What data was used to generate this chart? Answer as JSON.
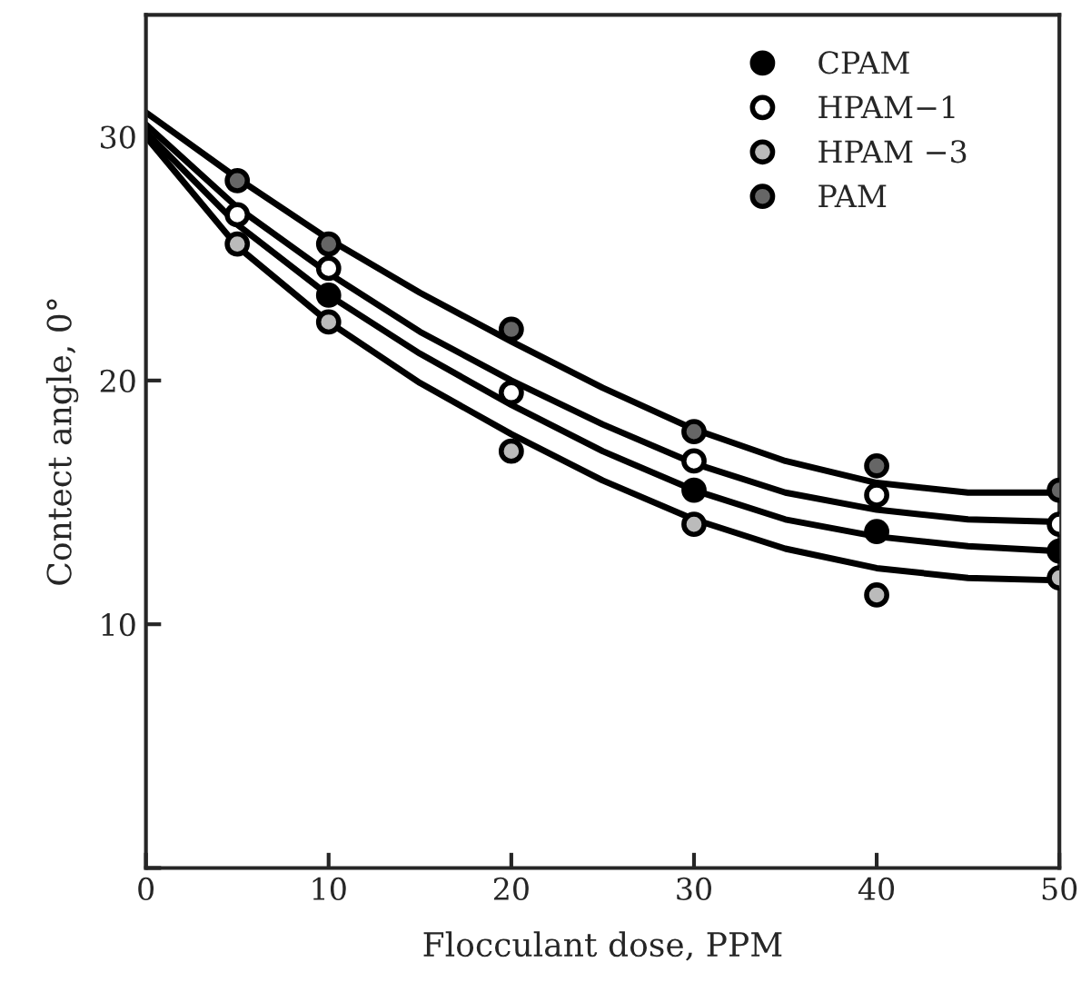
{
  "chart_data": {
    "type": "scatter",
    "xlabel": "Flocculant dose, PPM",
    "ylabel": "Contect angle, 0°",
    "xlim": [
      0,
      50
    ],
    "ylim": [
      0,
      35
    ],
    "xticks": [
      0,
      10,
      20,
      30,
      40,
      50
    ],
    "yticks": [
      {
        "value": 0,
        "label": null
      },
      10,
      20,
      30
    ],
    "grid": false,
    "legend": "top right",
    "marker": "circle",
    "x": [
      5,
      10,
      20,
      30,
      40,
      50
    ],
    "series": [
      {
        "name": "CPAM",
        "color": "#000000",
        "values": [
          null,
          23.5,
          null,
          15.5,
          13.8,
          13.0
        ]
      },
      {
        "name": "HPAM−1",
        "color": "#000000",
        "values": [
          26.8,
          24.6,
          19.5,
          16.7,
          15.3,
          14.1
        ]
      },
      {
        "name": "HPAM −3",
        "color": "#000000",
        "values": [
          25.6,
          22.4,
          17.1,
          14.1,
          11.2,
          11.9
        ]
      },
      {
        "name": "PAM",
        "color": "#000000",
        "values": [
          28.2,
          25.6,
          22.1,
          17.9,
          16.5,
          15.5
        ]
      },
      {
        "type": "line",
        "color": "#000000",
        "marker": "none",
        "x": [
          0,
          5,
          10,
          15,
          20,
          25,
          30,
          35,
          40,
          45,
          50
        ],
        "values": [
          31,
          28.3,
          25.8,
          23.6,
          21.6,
          19.7,
          18.0,
          16.7,
          15.8,
          15.4,
          15.4
        ]
      },
      {
        "type": "line",
        "color": "#000000",
        "marker": "none",
        "x": [
          0,
          5,
          10,
          15,
          20,
          25,
          30,
          35,
          40,
          45,
          50
        ],
        "values": [
          30.5,
          27.1,
          24.4,
          22.0,
          20.0,
          18.2,
          16.6,
          15.4,
          14.7,
          14.3,
          14.2
        ]
      },
      {
        "type": "line",
        "color": "#000000",
        "marker": "none",
        "x": [
          0,
          5,
          10,
          15,
          20,
          25,
          30,
          35,
          40,
          45,
          50
        ],
        "values": [
          30.2,
          26.4,
          23.5,
          21.1,
          19.0,
          17.1,
          15.5,
          14.3,
          13.6,
          13.2,
          13.0
        ]
      },
      {
        "type": "line",
        "color": "#000000",
        "marker": "none",
        "x": [
          0,
          5,
          10,
          15,
          20,
          25,
          30,
          35,
          40,
          45,
          50
        ],
        "values": [
          30,
          25.5,
          22.4,
          19.9,
          17.8,
          15.9,
          14.3,
          13.1,
          12.3,
          11.9,
          11.8
        ]
      }
    ]
  }
}
